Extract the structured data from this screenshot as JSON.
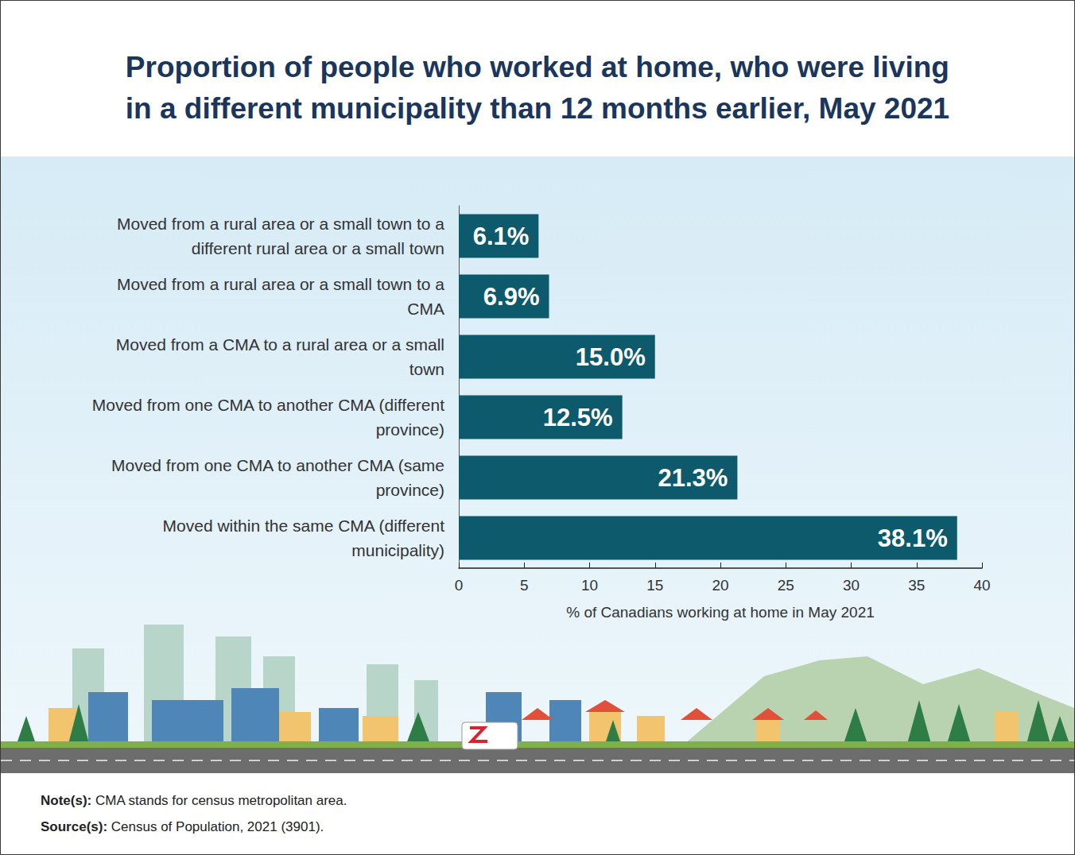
{
  "chart_data": {
    "type": "bar",
    "title": "Proportion of people who worked at home, who were living in a different municipality than 12 months earlier, May 2021",
    "orientation": "horizontal",
    "categories": [
      "Moved from a rural area or a small town to a different rural area or a small town",
      "Moved from a rural area or a small town to a CMA",
      "Moved from a CMA to a rural area or a small town",
      "Moved from one CMA to another CMA (different province)",
      "Moved from one CMA to another CMA (same province)",
      "Moved within the same CMA (different municipality)"
    ],
    "values": [
      6.1,
      6.9,
      15.0,
      12.5,
      21.3,
      38.1
    ],
    "value_labels": [
      "6.1%",
      "6.9%",
      "15.0%",
      "12.5%",
      "21.3%",
      "38.1%"
    ],
    "data_labels": true,
    "color": "#0d5a6c",
    "x_label": "% of Canadians working at home in May 2021",
    "xlim": [
      0,
      40
    ],
    "xticks": [
      0,
      5,
      10,
      15,
      20,
      25,
      30,
      35,
      40
    ],
    "grid": false,
    "annotations": [
      "Note(s): CMA stands for census metropolitan area.",
      "Source(s): Census of Population, 2021 (3901)."
    ]
  }
}
